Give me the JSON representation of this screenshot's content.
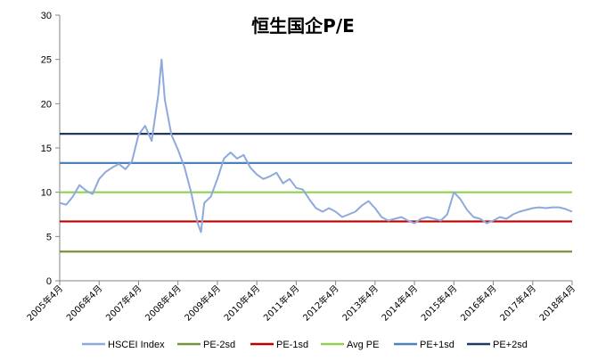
{
  "chart_data": {
    "type": "line",
    "title": "恒生国企P/E",
    "xlabel": "",
    "ylabel": "",
    "ylim": [
      0,
      30
    ],
    "yticks": [
      0,
      5,
      10,
      15,
      20,
      25,
      30
    ],
    "x_tick_labels": [
      "2005年4月",
      "2006年4月",
      "2007年4月",
      "2008年4月",
      "2009年4月",
      "2010年4月",
      "2011年4月",
      "2012年4月",
      "2013年4月",
      "2014年4月",
      "2015年4月",
      "2016年4月",
      "2017年4月",
      "2018年4月"
    ],
    "grid": false,
    "legend_position": "bottom",
    "series": [
      {
        "name": "HSCEI Index",
        "color": "#8EA9DB",
        "x": [
          "2005-04",
          "2005-06",
          "2005-08",
          "2005-10",
          "2005-12",
          "2006-02",
          "2006-04",
          "2006-06",
          "2006-08",
          "2006-10",
          "2006-12",
          "2007-02",
          "2007-04",
          "2007-06",
          "2007-08",
          "2007-10",
          "2007-11",
          "2007-12",
          "2008-02",
          "2008-04",
          "2008-06",
          "2008-08",
          "2008-10",
          "2008-11",
          "2008-12",
          "2009-02",
          "2009-04",
          "2009-06",
          "2009-08",
          "2009-10",
          "2009-12",
          "2010-02",
          "2010-04",
          "2010-06",
          "2010-08",
          "2010-10",
          "2010-12",
          "2011-02",
          "2011-04",
          "2011-06",
          "2011-08",
          "2011-10",
          "2011-12",
          "2012-02",
          "2012-04",
          "2012-06",
          "2012-08",
          "2012-10",
          "2012-12",
          "2013-02",
          "2013-04",
          "2013-06",
          "2013-08",
          "2013-10",
          "2013-12",
          "2014-02",
          "2014-04",
          "2014-06",
          "2014-08",
          "2014-10",
          "2014-12",
          "2015-02",
          "2015-04",
          "2015-06",
          "2015-08",
          "2015-10",
          "2015-12",
          "2016-02",
          "2016-04",
          "2016-06",
          "2016-08",
          "2016-10",
          "2016-12",
          "2017-02",
          "2017-04",
          "2017-06",
          "2017-08",
          "2017-10",
          "2017-12",
          "2018-02",
          "2018-04"
        ],
        "values": [
          8.8,
          8.6,
          9.5,
          10.8,
          10.2,
          9.8,
          11.5,
          12.3,
          12.8,
          13.2,
          12.6,
          13.5,
          16.5,
          17.5,
          15.8,
          21.0,
          25.0,
          20.5,
          16.5,
          14.8,
          12.8,
          10.0,
          6.5,
          5.5,
          8.8,
          9.5,
          11.5,
          13.8,
          14.5,
          13.8,
          14.2,
          12.8,
          12.0,
          11.5,
          11.8,
          12.2,
          11.0,
          11.5,
          10.5,
          10.3,
          9.2,
          8.2,
          7.8,
          8.2,
          7.8,
          7.2,
          7.5,
          7.8,
          8.5,
          9.0,
          8.2,
          7.2,
          6.8,
          7.0,
          7.2,
          6.8,
          6.5,
          7.0,
          7.2,
          7.0,
          6.8,
          7.5,
          10.0,
          9.2,
          8.0,
          7.2,
          7.0,
          6.5,
          6.8,
          7.2,
          7.0,
          7.5,
          7.8,
          8.0,
          8.2,
          8.3,
          8.2,
          8.3,
          8.3,
          8.1,
          7.8
        ]
      },
      {
        "name": "PE-2sd",
        "color": "#77933C",
        "constant": 3.3
      },
      {
        "name": "PE-1sd",
        "color": "#C00000",
        "constant": 6.7
      },
      {
        "name": "Avg PE",
        "color": "#92D050",
        "constant": 10.0
      },
      {
        "name": "PE+1sd",
        "color": "#4F81BD",
        "constant": 13.3
      },
      {
        "name": "PE+2sd",
        "color": "#1F3864",
        "constant": 16.6
      }
    ]
  }
}
